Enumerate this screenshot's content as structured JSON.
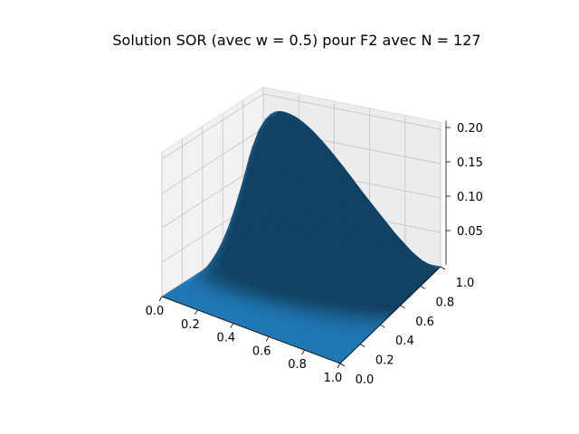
{
  "chart_data": {
    "type": "surface3d",
    "title": "Solution SOR (avec w = 0.5) pour F2 avec N = 127",
    "xlabel": "",
    "ylabel": "",
    "zlabel": "",
    "x_ticks": [
      "0.0",
      "0.2",
      "0.4",
      "0.6",
      "0.8",
      "1.0"
    ],
    "y_ticks": [
      "0.0",
      "0.2",
      "0.4",
      "0.6",
      "0.8",
      "1.0"
    ],
    "z_ticks": [
      "0.05",
      "0.10",
      "0.15",
      "0.20"
    ],
    "xlim": [
      0,
      1
    ],
    "ylim": [
      0,
      1
    ],
    "zlim": [
      0,
      0.21
    ],
    "surface": {
      "description": "u(x,y) = 0 on boundary, single smooth peak",
      "peak_value": 0.2,
      "peak_x": 0.2,
      "peak_y": 0.85,
      "grid_size": 128
    },
    "grid": true,
    "surface_color": "#1f77b4"
  }
}
